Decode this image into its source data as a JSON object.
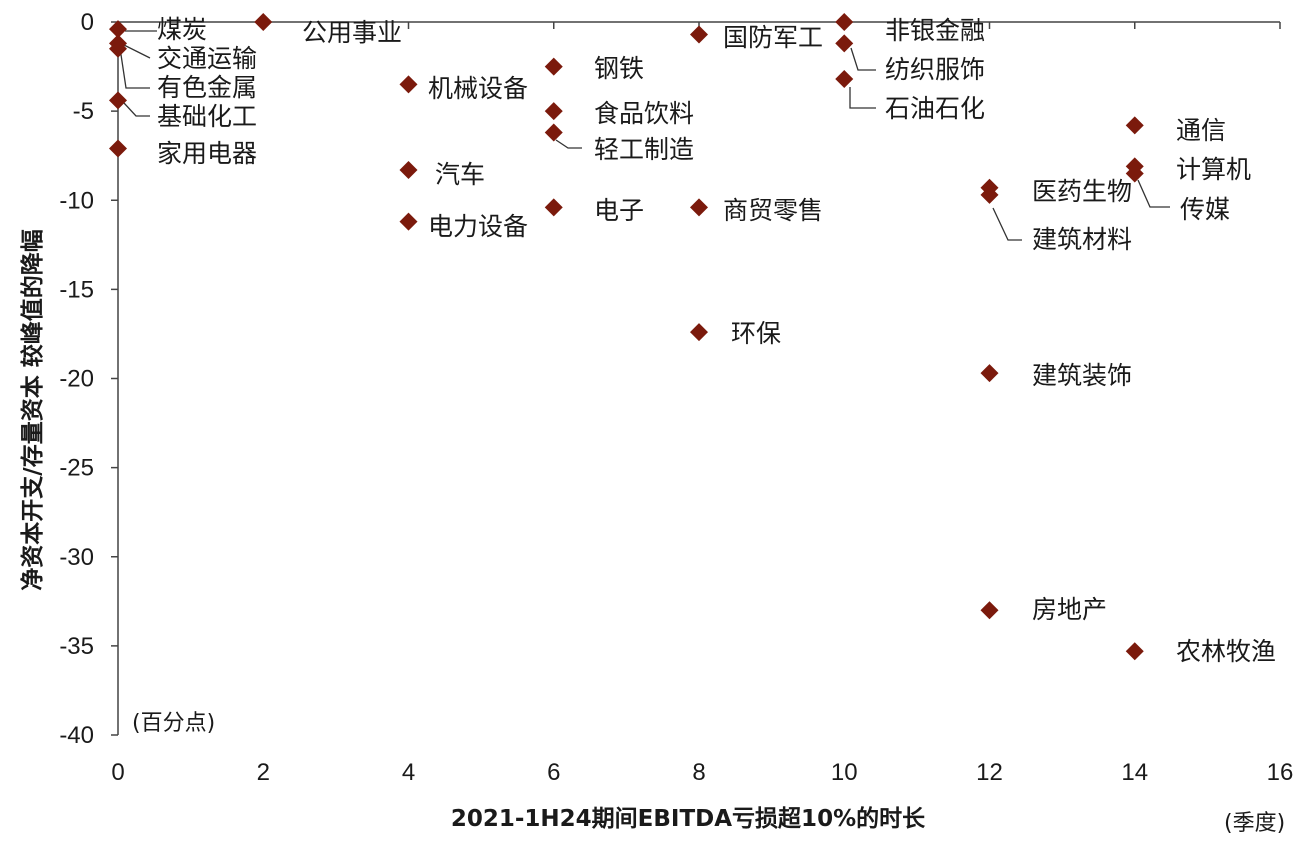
{
  "chart_data": {
    "type": "scatter",
    "xlabel": "2021-1H24期间EBITDA亏损超10%的时长",
    "ylabel": "净资本开支/存量资本 较峰值的降幅",
    "x_unit": "(季度)",
    "y_unit": "(百分点)",
    "xlim": [
      0,
      16
    ],
    "ylim": [
      -40,
      0
    ],
    "x_ticks": [
      "0",
      "2",
      "4",
      "6",
      "8",
      "10",
      "12",
      "14",
      "16"
    ],
    "y_ticks": [
      "0",
      "-5",
      "-10",
      "-15",
      "-20",
      "-25",
      "-30",
      "-35",
      "-40"
    ],
    "marker_color": "#7b1a0c",
    "grid": false,
    "legend": "none",
    "points": [
      {
        "label": "煤炭",
        "x": 0,
        "y": -0.4
      },
      {
        "label": "交通运输",
        "x": 0,
        "y": -1.2
      },
      {
        "label": "有色金属",
        "x": 0,
        "y": -1.5
      },
      {
        "label": "基础化工",
        "x": 0,
        "y": -4.4
      },
      {
        "label": "家用电器",
        "x": 0,
        "y": -7.1
      },
      {
        "label": "公用事业",
        "x": 2,
        "y": 0
      },
      {
        "label": "机械设备",
        "x": 4,
        "y": -3.5
      },
      {
        "label": "汽车",
        "x": 4,
        "y": -8.3
      },
      {
        "label": "电力设备",
        "x": 4,
        "y": -11.2
      },
      {
        "label": "钢铁",
        "x": 6,
        "y": -2.5
      },
      {
        "label": "食品饮料",
        "x": 6,
        "y": -5
      },
      {
        "label": "轻工制造",
        "x": 6,
        "y": -6.2
      },
      {
        "label": "电子",
        "x": 6,
        "y": -10.4
      },
      {
        "label": "国防军工",
        "x": 8,
        "y": -0.7
      },
      {
        "label": "商贸零售",
        "x": 8,
        "y": -10.4
      },
      {
        "label": "环保",
        "x": 8,
        "y": -17.4
      },
      {
        "label": "非银金融",
        "x": 10,
        "y": 0
      },
      {
        "label": "纺织服饰",
        "x": 10,
        "y": -1.2
      },
      {
        "label": "石油石化",
        "x": 10,
        "y": -3.2
      },
      {
        "label": "医药生物",
        "x": 12,
        "y": -9.3
      },
      {
        "label": "建筑材料",
        "x": 12,
        "y": -9.7
      },
      {
        "label": "建筑装饰",
        "x": 12,
        "y": -19.7
      },
      {
        "label": "房地产",
        "x": 12,
        "y": -33
      },
      {
        "label": "通信",
        "x": 14,
        "y": -5.8
      },
      {
        "label": "计算机",
        "x": 14,
        "y": -8.1
      },
      {
        "label": "传媒",
        "x": 14,
        "y": -8.5
      },
      {
        "label": "农林牧渔",
        "x": 14,
        "y": -35.3
      }
    ]
  }
}
